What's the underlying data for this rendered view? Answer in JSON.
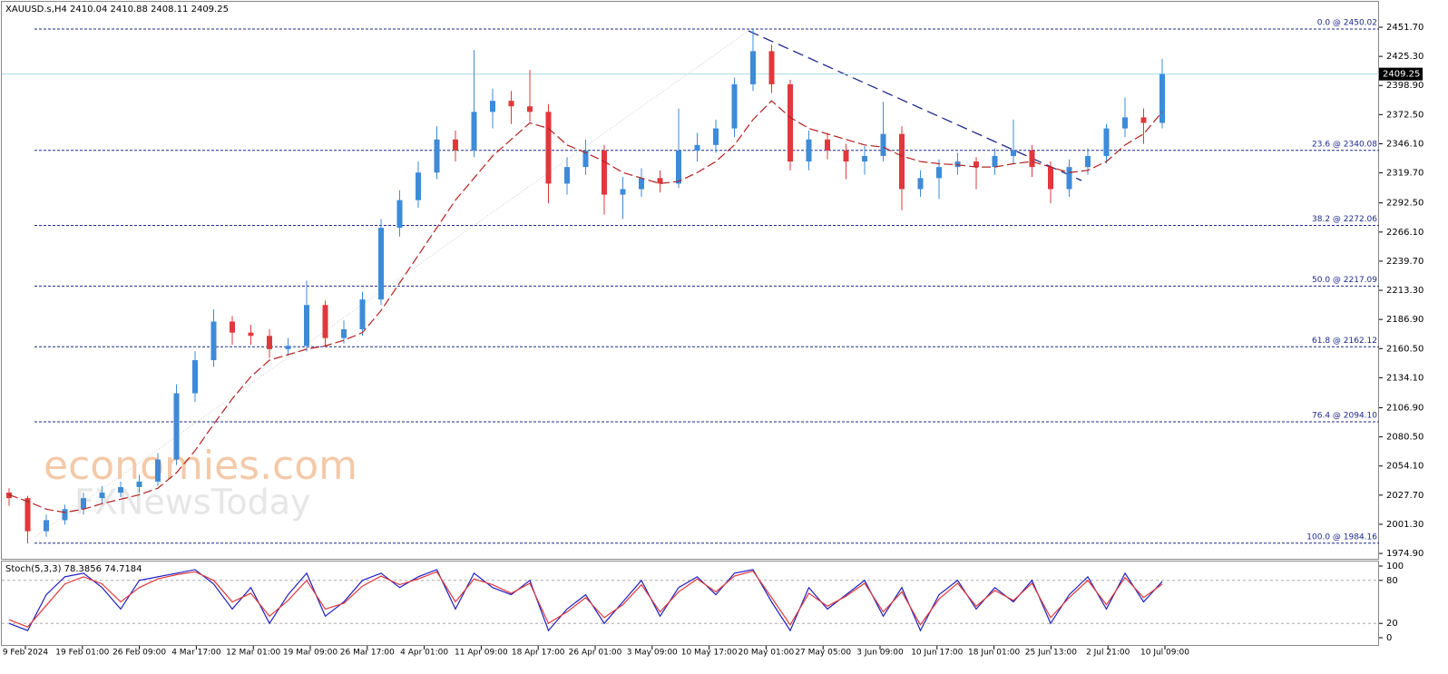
{
  "chart_data": {
    "type": "candlestick",
    "title": "XAUUSD.s,H4  2410.04 2410.88 2408.11 2409.25",
    "watermark": [
      "economies.com",
      "FXNewsToday"
    ],
    "up_color": "#3d8bd9",
    "down_color": "#e0383c",
    "ma_color": "#b22222",
    "x_labels": [
      "9 Feb 2024",
      "19 Feb 01:00",
      "26 Feb 09:00",
      "4 Mar 17:00",
      "12 Mar 01:00",
      "19 Mar 09:00",
      "26 Mar 17:00",
      "4 Apr 01:00",
      "11 Apr 09:00",
      "18 Apr 17:00",
      "26 Apr 01:00",
      "3 May 09:00",
      "10 May 17:00",
      "20 May 01:00",
      "27 May 05:00",
      "3 Jun 09:00",
      "10 Jun 17:00",
      "18 Jun 01:00",
      "25 Jun 13:00",
      "2 Jul 21:00",
      "10 Jul 09:00"
    ],
    "candles": [
      [
        2030,
        2034,
        2018,
        2025
      ],
      [
        2025,
        2027,
        1984,
        1995
      ],
      [
        1995,
        2010,
        1990,
        2005
      ],
      [
        2005,
        2019,
        2001,
        2015
      ],
      [
        2015,
        2030,
        2010,
        2025
      ],
      [
        2025,
        2036,
        2020,
        2030
      ],
      [
        2030,
        2040,
        2026,
        2035
      ],
      [
        2035,
        2046,
        2030,
        2040
      ],
      [
        2040,
        2066,
        2036,
        2060
      ],
      [
        2060,
        2128,
        2055,
        2120
      ],
      [
        2120,
        2158,
        2112,
        2150
      ],
      [
        2150,
        2196,
        2144,
        2185
      ],
      [
        2185,
        2190,
        2164,
        2175
      ],
      [
        2175,
        2182,
        2164,
        2172
      ],
      [
        2172,
        2178,
        2152,
        2160
      ],
      [
        2160,
        2170,
        2154,
        2163
      ],
      [
        2163,
        2222,
        2158,
        2200
      ],
      [
        2200,
        2204,
        2162,
        2170
      ],
      [
        2170,
        2186,
        2165,
        2178
      ],
      [
        2178,
        2212,
        2172,
        2205
      ],
      [
        2205,
        2278,
        2200,
        2270
      ],
      [
        2270,
        2304,
        2262,
        2295
      ],
      [
        2295,
        2330,
        2288,
        2320
      ],
      [
        2320,
        2362,
        2314,
        2350
      ],
      [
        2350,
        2358,
        2330,
        2340
      ],
      [
        2340,
        2431,
        2334,
        2375
      ],
      [
        2375,
        2396,
        2360,
        2385
      ],
      [
        2385,
        2394,
        2364,
        2380
      ],
      [
        2380,
        2413,
        2366,
        2375
      ],
      [
        2375,
        2382,
        2292,
        2310
      ],
      [
        2310,
        2334,
        2300,
        2325
      ],
      [
        2325,
        2350,
        2318,
        2340
      ],
      [
        2340,
        2345,
        2282,
        2300
      ],
      [
        2300,
        2316,
        2278,
        2305
      ],
      [
        2305,
        2324,
        2298,
        2315
      ],
      [
        2315,
        2322,
        2302,
        2310
      ],
      [
        2310,
        2378,
        2306,
        2340
      ],
      [
        2340,
        2356,
        2330,
        2345
      ],
      [
        2345,
        2368,
        2338,
        2360
      ],
      [
        2360,
        2406,
        2352,
        2400
      ],
      [
        2400,
        2450,
        2394,
        2430
      ],
      [
        2430,
        2436,
        2392,
        2400
      ],
      [
        2400,
        2404,
        2322,
        2330
      ],
      [
        2330,
        2358,
        2322,
        2350
      ],
      [
        2350,
        2356,
        2332,
        2340
      ],
      [
        2340,
        2346,
        2314,
        2330
      ],
      [
        2330,
        2344,
        2318,
        2335
      ],
      [
        2335,
        2384,
        2330,
        2355
      ],
      [
        2355,
        2362,
        2286,
        2305
      ],
      [
        2305,
        2322,
        2298,
        2315
      ],
      [
        2315,
        2332,
        2296,
        2325
      ],
      [
        2325,
        2338,
        2318,
        2330
      ],
      [
        2330,
        2334,
        2305,
        2325
      ],
      [
        2325,
        2342,
        2318,
        2335
      ],
      [
        2335,
        2368,
        2328,
        2340
      ],
      [
        2340,
        2345,
        2316,
        2325
      ],
      [
        2325,
        2330,
        2292,
        2305
      ],
      [
        2305,
        2332,
        2298,
        2325
      ],
      [
        2325,
        2342,
        2318,
        2335
      ],
      [
        2335,
        2364,
        2328,
        2360
      ],
      [
        2360,
        2388,
        2352,
        2370
      ],
      [
        2370,
        2378,
        2346,
        2365
      ],
      [
        2365,
        2423,
        2360,
        2409.25
      ]
    ],
    "ma": [
      2028,
      2022,
      2015,
      2012,
      2015,
      2020,
      2024,
      2028,
      2034,
      2048,
      2068,
      2092,
      2115,
      2135,
      2150,
      2155,
      2160,
      2163,
      2168,
      2175,
      2195,
      2220,
      2245,
      2270,
      2295,
      2315,
      2335,
      2350,
      2365,
      2360,
      2345,
      2338,
      2330,
      2320,
      2315,
      2310,
      2312,
      2320,
      2330,
      2345,
      2368,
      2385,
      2370,
      2360,
      2355,
      2350,
      2345,
      2343,
      2335,
      2330,
      2328,
      2327,
      2325,
      2325,
      2328,
      2330,
      2325,
      2320,
      2322,
      2330,
      2345,
      2355,
      2375
    ],
    "ylim": [
      1971.67,
      2476.36
    ],
    "yticks": [
      {
        "value": 2451.7,
        "label": "2451.70"
      },
      {
        "value": 2425.3,
        "label": "2425.30"
      },
      {
        "value": 2398.9,
        "label": "2398.90"
      },
      {
        "value": 2372.5,
        "label": "2372.50"
      },
      {
        "value": 2346.1,
        "label": "2346.10"
      },
      {
        "value": 2319.7,
        "label": "2319.70"
      },
      {
        "value": 2292.5,
        "label": "2292.50"
      },
      {
        "value": 2266.1,
        "label": "2266.10"
      },
      {
        "value": 2239.7,
        "label": "2239.70"
      },
      {
        "value": 2213.3,
        "label": "2213.30"
      },
      {
        "value": 2186.9,
        "label": "2186.90"
      },
      {
        "value": 2160.5,
        "label": "2160.50"
      },
      {
        "value": 2134.1,
        "label": "2134.10"
      },
      {
        "value": 2106.9,
        "label": "2106.90"
      },
      {
        "value": 2080.5,
        "label": "2080.50"
      },
      {
        "value": 2054.1,
        "label": "2054.10"
      },
      {
        "value": 2027.7,
        "label": "2027.70"
      },
      {
        "value": 2001.3,
        "label": "2001.30"
      },
      {
        "value": 1974.9,
        "label": "1974.90"
      }
    ],
    "fib_levels": [
      {
        "value": 2450.02,
        "label": "0.0 @ 2450.02"
      },
      {
        "value": 2340.08,
        "label": "23.6 @ 2340.08"
      },
      {
        "value": 2272.06,
        "label": "38.2 @ 2272.06"
      },
      {
        "value": 2217.09,
        "label": "50.0 @ 2217.09"
      },
      {
        "value": 2162.12,
        "label": "61.8 @ 2162.12"
      },
      {
        "value": 2094.1,
        "label": "76.4 @ 2094.10"
      },
      {
        "value": 1984.16,
        "label": "100.0 @ 1984.16"
      }
    ],
    "last_price": 2409.25,
    "stoch": {
      "title": "Stoch(5,3,3) 78.3856 74.7184",
      "ylim": [
        -11.4,
        107.6
      ],
      "yticks": [
        100,
        80,
        20,
        0
      ],
      "k_color": "#2020c0",
      "d_color": "#e0383c",
      "k": [
        20,
        10,
        60,
        85,
        90,
        70,
        40,
        80,
        85,
        90,
        95,
        75,
        40,
        70,
        20,
        60,
        90,
        30,
        50,
        80,
        90,
        70,
        85,
        95,
        40,
        90,
        70,
        60,
        80,
        10,
        40,
        60,
        20,
        50,
        80,
        30,
        70,
        85,
        60,
        90,
        95,
        50,
        10,
        70,
        40,
        60,
        80,
        30,
        70,
        10,
        60,
        80,
        40,
        70,
        50,
        80,
        20,
        60,
        85,
        40,
        90,
        50,
        78.3856
      ],
      "d": [
        25,
        15,
        45,
        75,
        85,
        75,
        50,
        70,
        82,
        88,
        92,
        80,
        50,
        62,
        30,
        52,
        80,
        40,
        48,
        72,
        86,
        74,
        82,
        92,
        50,
        82,
        74,
        62,
        76,
        20,
        36,
        56,
        28,
        46,
        74,
        36,
        64,
        82,
        64,
        86,
        93,
        56,
        18,
        62,
        44,
        58,
        76,
        36,
        64,
        18,
        54,
        76,
        44,
        66,
        52,
        76,
        28,
        56,
        80,
        46,
        84,
        56,
        74.7184
      ]
    }
  }
}
